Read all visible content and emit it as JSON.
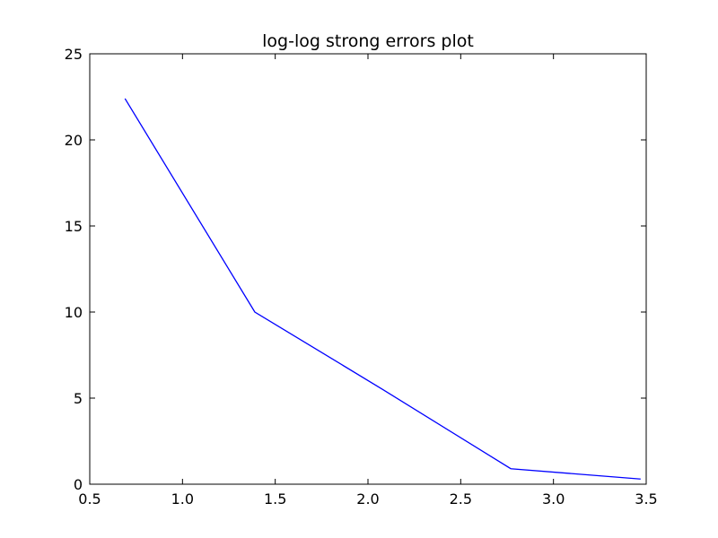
{
  "chart_data": {
    "type": "line",
    "title": "log-log strong errors plot",
    "xlabel": "",
    "ylabel": "",
    "xlim": [
      0.5,
      3.5
    ],
    "ylim": [
      0,
      25
    ],
    "x_ticks": [
      "0.5",
      "1.0",
      "1.5",
      "2.0",
      "2.5",
      "3.0",
      "3.5"
    ],
    "y_ticks": [
      "0",
      "5",
      "10",
      "15",
      "20",
      "25"
    ],
    "grid": false,
    "legend": "none",
    "series": [
      {
        "color": "#0000ff",
        "x": [
          0.69,
          1.39,
          2.08,
          2.77,
          3.47
        ],
        "y": [
          22.4,
          10.0,
          5.5,
          0.9,
          0.3
        ]
      }
    ]
  }
}
